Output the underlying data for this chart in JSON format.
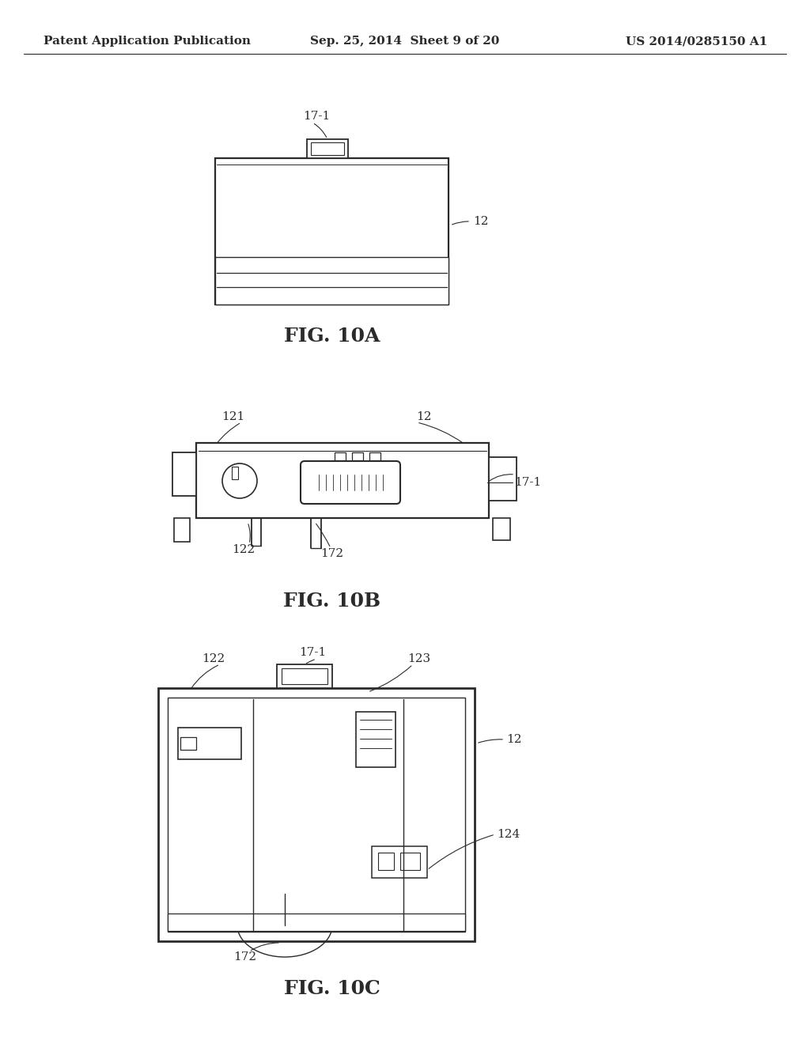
{
  "background_color": "#ffffff",
  "header_left": "Patent Application Publication",
  "header_center": "Sep. 25, 2014  Sheet 9 of 20",
  "header_right": "US 2014/0285150 A1",
  "header_fontsize": 11,
  "fig_label_fontsize": 17,
  "annotation_fontsize": 11,
  "fig10a_label": "FIG. 10A",
  "fig10b_label": "FIG. 10B",
  "fig10c_label": "FIG. 10C",
  "line_color": "#2a2a2a",
  "line_width": 1.3
}
